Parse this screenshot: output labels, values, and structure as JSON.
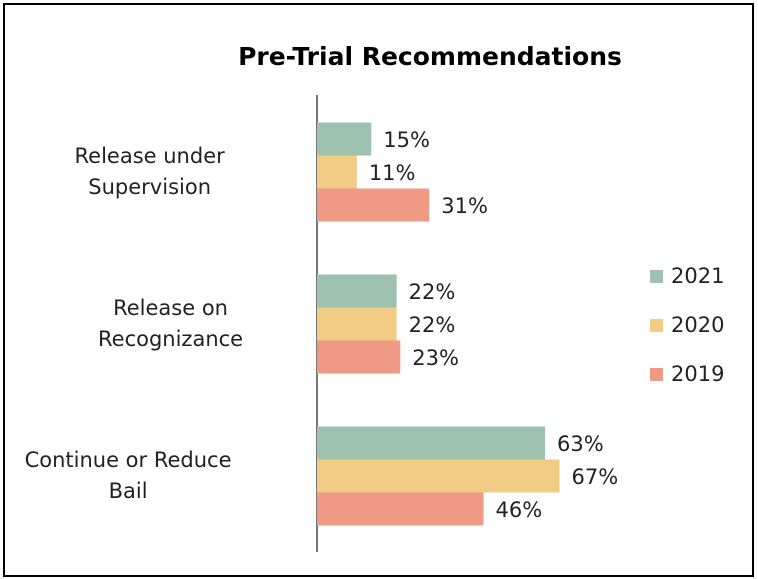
{
  "chart_data": {
    "type": "bar",
    "orientation": "horizontal",
    "title": "Pre-Trial Recommendations",
    "categories": [
      "Release under\nSupervision",
      "Release on\nRecognizance",
      "Continue or Reduce\nBail"
    ],
    "series": [
      {
        "name": "2021",
        "color": "#9dc3b0",
        "values": [
          15,
          22,
          63
        ],
        "value_labels": [
          "15%",
          "22%",
          "63%"
        ]
      },
      {
        "name": "2020",
        "color": "#f0cc85",
        "values": [
          11,
          22,
          67
        ],
        "value_labels": [
          "11%",
          "22%",
          "67%"
        ]
      },
      {
        "name": "2019",
        "color": "#f09a85",
        "values": [
          31,
          23,
          46
        ],
        "value_labels": [
          "31%",
          "23%",
          "46%"
        ]
      }
    ],
    "legend": "right"
  }
}
